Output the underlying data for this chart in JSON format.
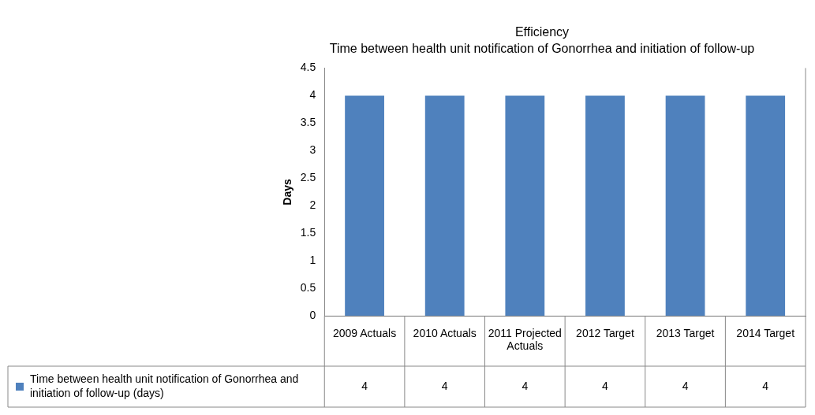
{
  "chart_data": {
    "type": "bar",
    "title": "Efficiency",
    "subtitle": "Time between health unit notification of Gonorrhea and initiation of follow-up",
    "ylabel": "Days",
    "categories": [
      "2009 Actuals",
      "2010 Actuals",
      "2011 Projected Actuals",
      "2012 Target",
      "2013 Target",
      "2014 Target"
    ],
    "series": [
      {
        "name": "Time between health unit notification of Gonorrhea and initiation of follow-up (days)",
        "color": "#4f81bd",
        "values": [
          4,
          4,
          4,
          4,
          4,
          4
        ]
      }
    ],
    "ylim": [
      0,
      4.5
    ],
    "yticks": [
      0,
      0.5,
      1,
      1.5,
      2,
      2.5,
      3,
      3.5,
      4,
      4.5
    ],
    "grid": false,
    "legend": "bottom left",
    "data_labels": true
  }
}
